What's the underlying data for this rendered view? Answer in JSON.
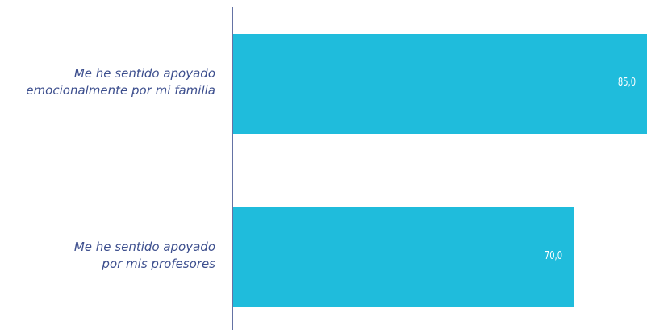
{
  "chart_data": {
    "type": "bar",
    "orientation": "horizontal",
    "categories": [
      [
        "Me he sentido apoyado",
        "emocionalmente por mi familia"
      ],
      [
        "Me he sentido apoyado",
        "por mis profesores"
      ]
    ],
    "values": [
      85.0,
      70.0
    ],
    "value_labels": [
      "85,0",
      "70,0"
    ],
    "xlim": [
      0,
      85
    ],
    "grid": false,
    "legend": "none",
    "bar_color": "#1fbcdc",
    "axis_color": "#3d4f8e",
    "label_color": "#3d4f8e"
  }
}
